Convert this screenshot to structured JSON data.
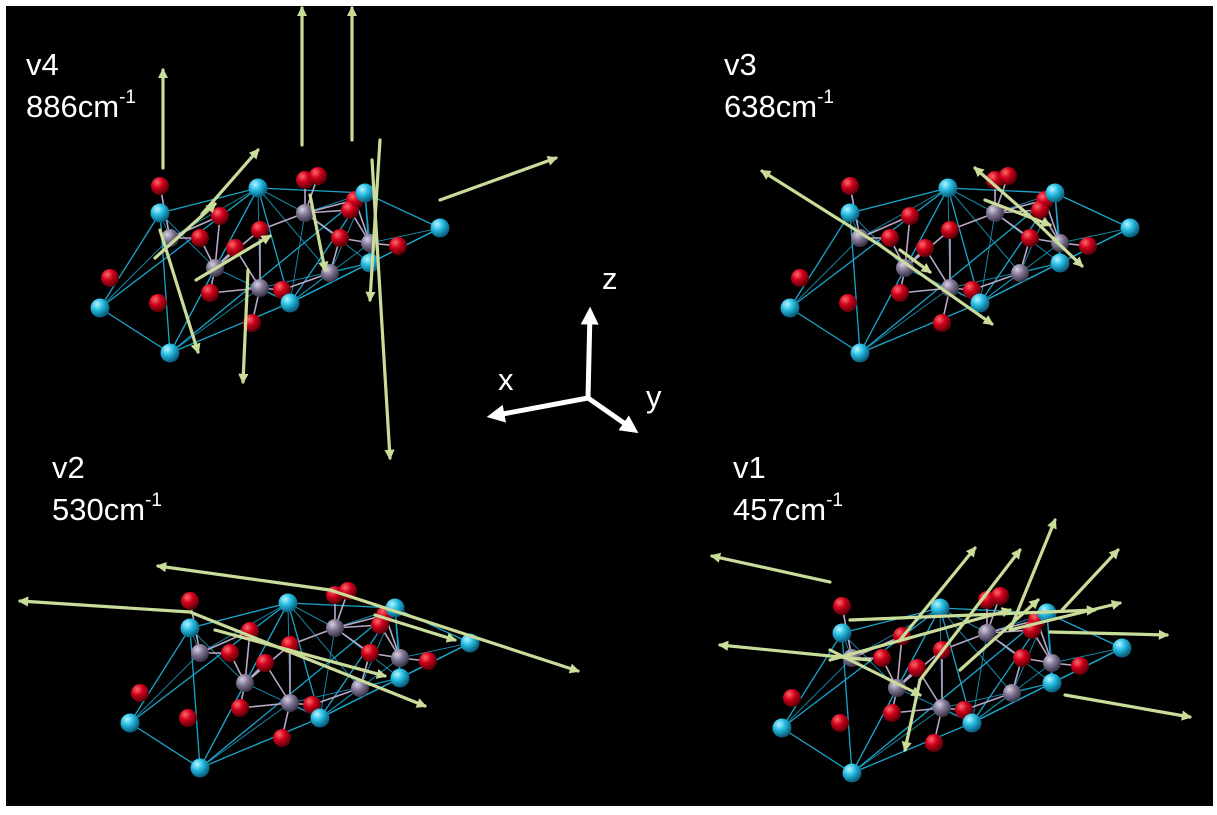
{
  "modes": [
    {
      "id": "v4",
      "name": "v4",
      "freq_value": "886",
      "freq_unit": "cm",
      "freq_exp": "-1"
    },
    {
      "id": "v3",
      "name": "v3",
      "freq_value": "638",
      "freq_unit": "cm",
      "freq_exp": "-1"
    },
    {
      "id": "v2",
      "name": "v2",
      "freq_value": "530",
      "freq_unit": "cm",
      "freq_exp": "-1"
    },
    {
      "id": "v1",
      "name": "v1",
      "freq_value": "457",
      "freq_unit": "cm",
      "freq_exp": "-1"
    }
  ],
  "axes": {
    "z": "z",
    "x": "x",
    "y": "y"
  },
  "colors": {
    "background": "#000000",
    "oxygen_atom": "#c0001a",
    "cation_atom": "#22b8dc",
    "center_atom": "#7d7390",
    "bond_cyan": "#1aa6cc",
    "bond_lilac": "#b9a8c8",
    "displacement_arrow": "#c9dc9a",
    "axis": "#ffffff"
  }
}
